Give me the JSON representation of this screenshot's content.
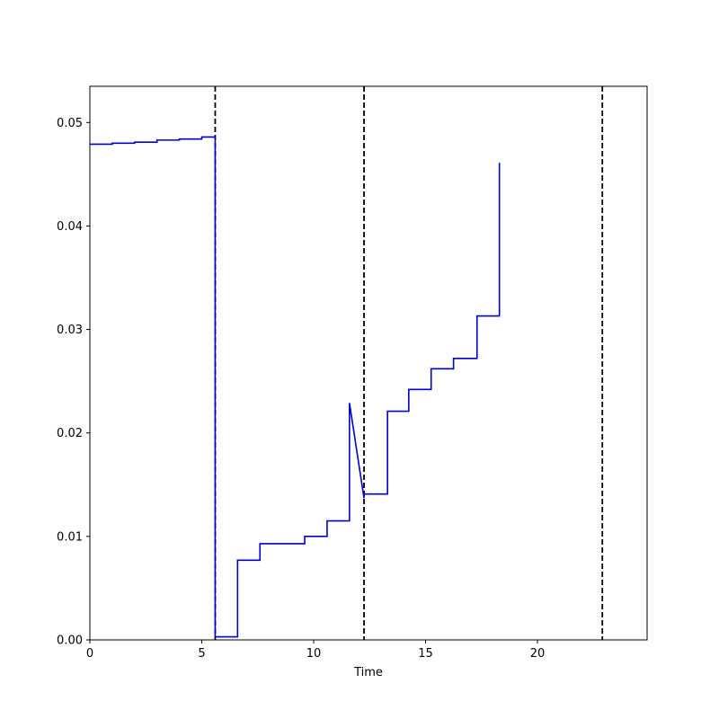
{
  "chart_data": {
    "type": "line",
    "title": "",
    "xlabel": "Time",
    "ylabel": "",
    "xlim": [
      0,
      24.9
    ],
    "ylim": [
      0,
      0.0535
    ],
    "grid": false,
    "legend": "none",
    "x_ticks": [
      {
        "value": 0,
        "label": "0"
      },
      {
        "value": 5,
        "label": "5"
      },
      {
        "value": 10,
        "label": "10"
      },
      {
        "value": 15,
        "label": "15"
      },
      {
        "value": 20,
        "label": "20"
      }
    ],
    "y_ticks": [
      {
        "value": 0,
        "label": "0.00"
      },
      {
        "value": 0.01,
        "label": "0.01"
      },
      {
        "value": 0.02,
        "label": "0.02"
      },
      {
        "value": 0.03,
        "label": "0.03"
      },
      {
        "value": 0.04,
        "label": "0.04"
      },
      {
        "value": 0.05,
        "label": "0.05"
      }
    ],
    "vlines": [
      {
        "x": 5.6,
        "style": "dashed",
        "color": "#000000"
      },
      {
        "x": 12.25,
        "style": "dashed",
        "color": "#000000"
      },
      {
        "x": 22.9,
        "style": "dashed",
        "color": "#000000"
      }
    ],
    "series": [
      {
        "color": "#0000cc",
        "points": [
          [
            0,
            0.0479
          ],
          [
            1,
            0.0479
          ],
          [
            1,
            0.048
          ],
          [
            2,
            0.048
          ],
          [
            2,
            0.0481
          ],
          [
            3,
            0.0481
          ],
          [
            3,
            0.0483
          ],
          [
            4,
            0.0483
          ],
          [
            4,
            0.0484
          ],
          [
            5,
            0.0484
          ],
          [
            5,
            0.0486
          ],
          [
            5.6,
            0.0486
          ],
          [
            5.6,
            0.0003
          ],
          [
            6.6,
            0.0003
          ],
          [
            6.6,
            0.0077
          ],
          [
            7.6,
            0.0077
          ],
          [
            7.6,
            0.0093
          ],
          [
            8.6,
            0.0093
          ],
          [
            9.6,
            0.0093
          ],
          [
            9.6,
            0.01
          ],
          [
            10.6,
            0.01
          ],
          [
            10.6,
            0.0115
          ],
          [
            11.6,
            0.0115
          ],
          [
            11.6,
            0.0229
          ],
          [
            12.25,
            0.0137
          ],
          [
            12.25,
            0.0141
          ],
          [
            13.3,
            0.0141
          ],
          [
            13.3,
            0.0221
          ],
          [
            14.25,
            0.0221
          ],
          [
            14.25,
            0.0242
          ],
          [
            15.25,
            0.0242
          ],
          [
            15.25,
            0.0262
          ],
          [
            16.25,
            0.0262
          ],
          [
            16.25,
            0.0272
          ],
          [
            17.3,
            0.0272
          ],
          [
            17.3,
            0.0313
          ],
          [
            18.3,
            0.0313
          ],
          [
            18.3,
            0.0461
          ]
        ]
      }
    ]
  }
}
